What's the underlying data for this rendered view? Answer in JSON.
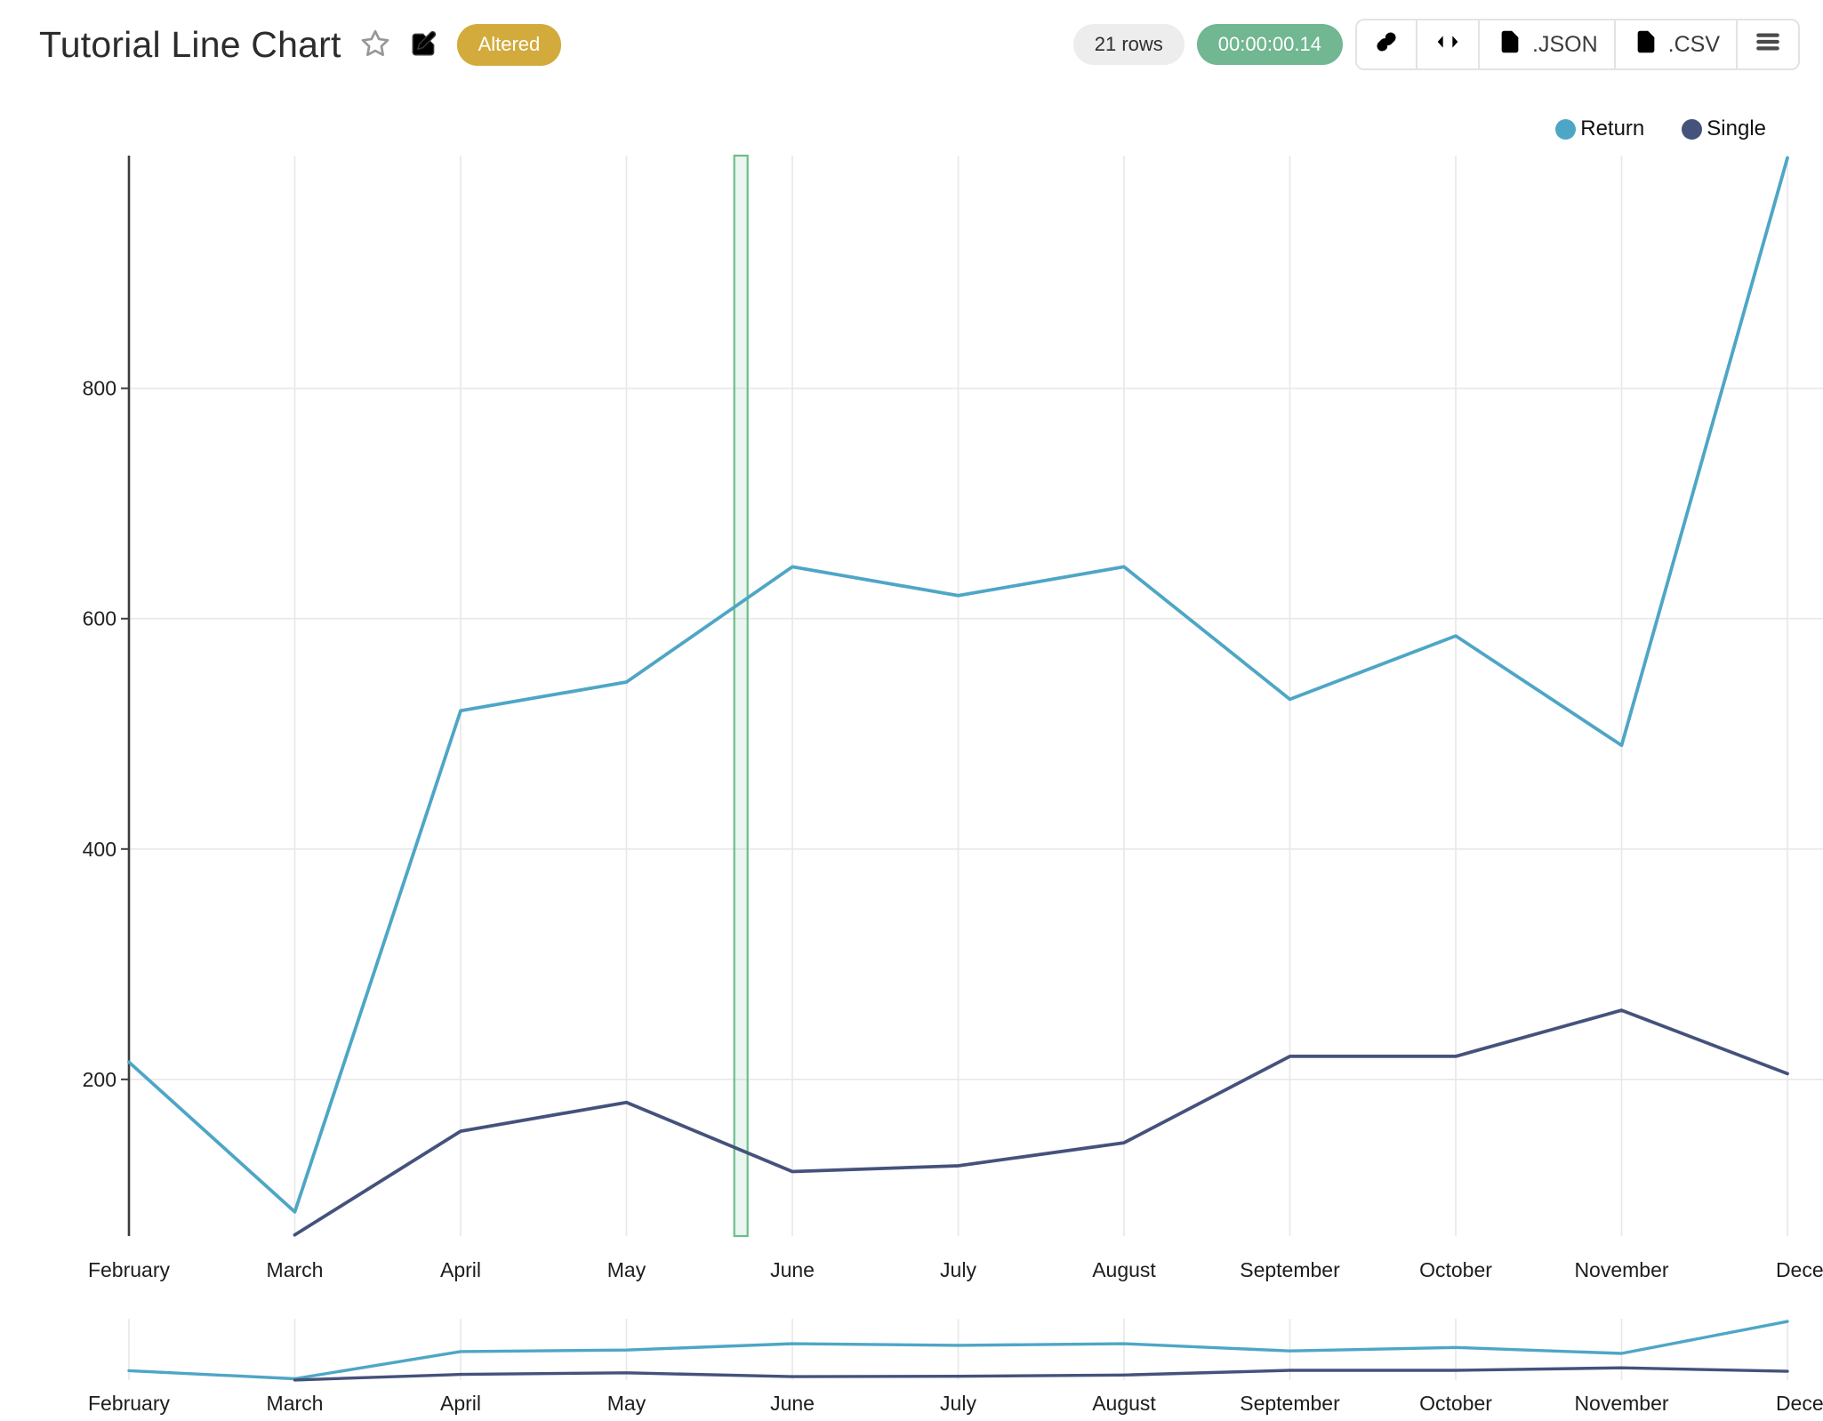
{
  "header": {
    "title": "Tutorial Line Chart",
    "status_badge": "Altered",
    "status_color": "#d2ab3c",
    "rows_badge": "21 rows",
    "timer_badge": "00:00:00.14",
    "timer_color": "#71b791",
    "export_json_label": ".JSON",
    "export_csv_label": ".CSV",
    "icons": [
      "star-icon",
      "edit-icon",
      "link-icon",
      "code-icon",
      "file-json-icon",
      "file-csv-icon",
      "menu-icon"
    ]
  },
  "chart_data": {
    "type": "line",
    "title": "Tutorial Line Chart",
    "categories": [
      "February",
      "March",
      "April",
      "May",
      "June",
      "July",
      "August",
      "September",
      "October",
      "November",
      "December"
    ],
    "series": [
      {
        "name": "Return",
        "color": "#4ea6c6",
        "start_index": 0,
        "values": [
          215,
          85,
          520,
          545,
          645,
          620,
          645,
          530,
          585,
          490,
          1000
        ]
      },
      {
        "name": "Single",
        "color": "#44527c",
        "start_index": 1,
        "values": [
          65,
          155,
          180,
          120,
          125,
          145,
          220,
          220,
          260,
          205
        ]
      }
    ],
    "row_count": 21,
    "xlabel": "",
    "ylabel": "",
    "yticks": [
      200,
      400,
      600,
      800
    ],
    "ylim": [
      64,
      1002
    ],
    "grid": true,
    "legend_position": "top-right",
    "axis_color": "#3d3d3d",
    "gridline_color": "#e8e8e8",
    "label_color": "#1d1d1d",
    "annotation_band": {
      "between": [
        "May",
        "June"
      ],
      "fraction": 0.69,
      "stroke": "#6cbd8c",
      "fill": "#6cbd8c",
      "fill_opacity": 0.14
    },
    "minimap": {
      "shows": "same series overview",
      "months_repeated": true
    }
  }
}
